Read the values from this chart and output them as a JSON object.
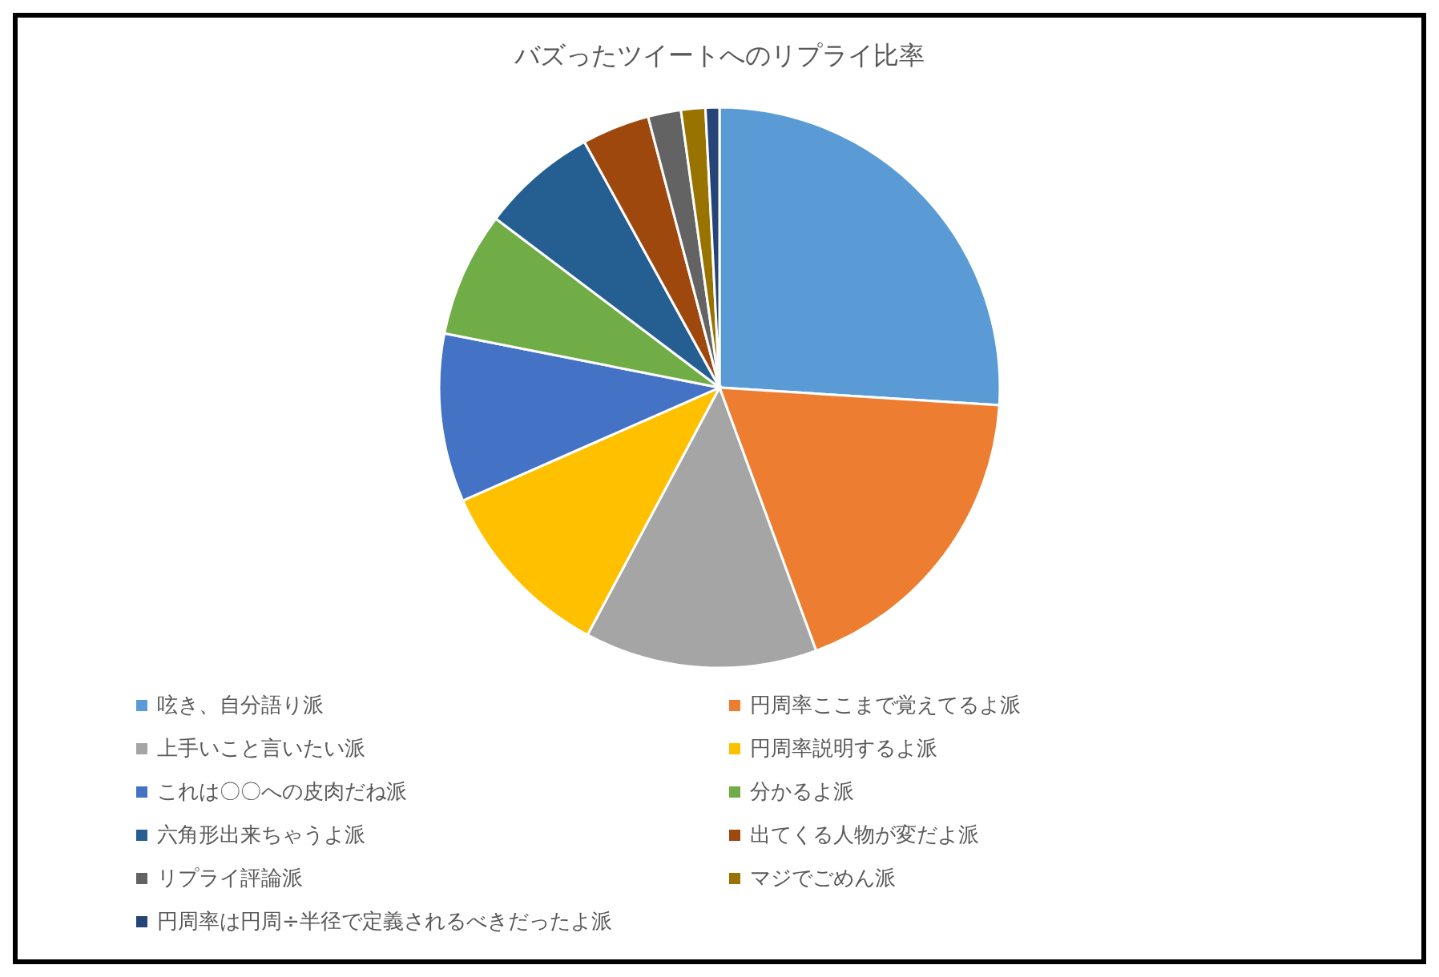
{
  "chart_data": {
    "type": "pie",
    "title": "バズったツイートへのリプライ比率",
    "categories": [
      "呟き、自分語り派",
      "円周率ここまで覚えてるよ派",
      "上手いこと言いたい派",
      "円周率説明するよ派",
      "これは〇〇への皮肉だね派",
      "分かるよ派",
      "六角形出来ちゃうよ派",
      "出てくる人物が変だよ派",
      "リプライ評論派",
      "マジでごめん派",
      "円周率は円周÷半径で定義されるべきだったよ派"
    ],
    "values": [
      26.0,
      18.4,
      13.4,
      10.6,
      9.7,
      7.2,
      6.7,
      3.9,
      1.9,
      1.4,
      0.8
    ],
    "colors": [
      "#5b9bd5",
      "#ed7d31",
      "#a5a5a5",
      "#ffc000",
      "#4472c4",
      "#70ad47",
      "#255e91",
      "#9e480e",
      "#636363",
      "#997300",
      "#264478"
    ],
    "legend": "bottom"
  }
}
